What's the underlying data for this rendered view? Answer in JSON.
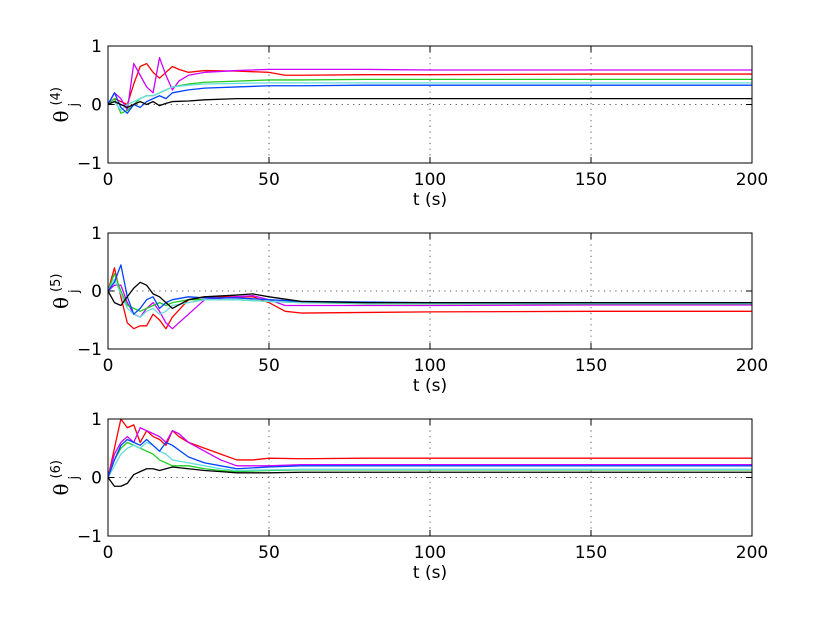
{
  "chart_data": [
    {
      "type": "line",
      "panel": "theta_j^(4)",
      "ylabel": {
        "symbol": "θ",
        "sub": "j",
        "sup": "(4)"
      },
      "xlabel": "t (s)",
      "xlim": [
        0,
        200
      ],
      "ylim": [
        -1,
        1
      ],
      "xticks": [
        0,
        50,
        100,
        150,
        200
      ],
      "yticks": [
        -1,
        0,
        1
      ],
      "grid": "dotted",
      "series": [
        {
          "name": "red",
          "color": "#ff0000",
          "x": [
            0,
            2,
            4,
            6,
            8,
            10,
            12,
            14,
            16,
            18,
            20,
            22,
            25,
            30,
            40,
            50,
            55,
            60,
            80,
            100,
            150,
            200
          ],
          "y": [
            0,
            0.1,
            0.05,
            0.0,
            0.35,
            0.65,
            0.7,
            0.55,
            0.45,
            0.55,
            0.65,
            0.6,
            0.55,
            0.58,
            0.57,
            0.55,
            0.5,
            0.5,
            0.51,
            0.51,
            0.52,
            0.52
          ]
        },
        {
          "name": "magenta",
          "color": "#cc00ff",
          "x": [
            0,
            2,
            4,
            6,
            8,
            10,
            12,
            14,
            16,
            18,
            20,
            22,
            25,
            30,
            40,
            50,
            60,
            80,
            100,
            150,
            200
          ],
          "y": [
            0,
            0.2,
            0.1,
            -0.1,
            0.7,
            0.5,
            0.3,
            0.2,
            0.8,
            0.5,
            0.25,
            0.4,
            0.5,
            0.55,
            0.58,
            0.6,
            0.6,
            0.6,
            0.59,
            0.59,
            0.59
          ]
        },
        {
          "name": "green",
          "color": "#22cc22",
          "x": [
            0,
            2,
            4,
            6,
            8,
            10,
            12,
            14,
            16,
            18,
            20,
            25,
            30,
            40,
            50,
            60,
            80,
            100,
            150,
            200
          ],
          "y": [
            0,
            0.1,
            -0.15,
            -0.1,
            0.0,
            0.1,
            0.15,
            0.15,
            0.2,
            0.25,
            0.3,
            0.35,
            0.38,
            0.4,
            0.42,
            0.42,
            0.43,
            0.43,
            0.43,
            0.43
          ]
        },
        {
          "name": "cyan",
          "color": "#66dddd",
          "x": [
            0,
            2,
            4,
            6,
            8,
            10,
            12,
            14,
            16,
            18,
            20,
            25,
            30,
            40,
            50,
            60,
            80,
            100,
            150,
            200
          ],
          "y": [
            0,
            0.05,
            -0.1,
            0.0,
            0.05,
            0.1,
            0.15,
            0.15,
            0.2,
            0.25,
            0.3,
            0.33,
            0.35,
            0.36,
            0.37,
            0.37,
            0.37,
            0.37,
            0.37,
            0.37
          ]
        },
        {
          "name": "blue",
          "color": "#0044ff",
          "x": [
            0,
            2,
            4,
            6,
            8,
            10,
            12,
            14,
            16,
            18,
            20,
            25,
            30,
            40,
            50,
            60,
            80,
            100,
            150,
            200
          ],
          "y": [
            0,
            0.2,
            -0.05,
            -0.15,
            0.0,
            -0.05,
            0.05,
            0.1,
            0.15,
            0.1,
            0.2,
            0.25,
            0.28,
            0.3,
            0.32,
            0.32,
            0.33,
            0.33,
            0.33,
            0.33
          ]
        },
        {
          "name": "black",
          "color": "#000000",
          "x": [
            0,
            2,
            4,
            6,
            8,
            10,
            12,
            14,
            16,
            18,
            20,
            25,
            30,
            40,
            50,
            60,
            80,
            100,
            150,
            200
          ],
          "y": [
            0,
            0.05,
            0.0,
            -0.05,
            0.0,
            0.05,
            0.0,
            0.05,
            -0.02,
            0.02,
            0.05,
            0.06,
            0.08,
            0.1,
            0.1,
            0.1,
            0.1,
            0.1,
            0.1,
            0.1
          ]
        }
      ]
    },
    {
      "type": "line",
      "panel": "theta_j^(5)",
      "ylabel": {
        "symbol": "θ",
        "sub": "j",
        "sup": "(5)"
      },
      "xlabel": "t (s)",
      "xlim": [
        0,
        200
      ],
      "ylim": [
        -1,
        1
      ],
      "xticks": [
        0,
        50,
        100,
        150,
        200
      ],
      "yticks": [
        -1,
        0,
        1
      ],
      "grid": "dotted",
      "series": [
        {
          "name": "red",
          "color": "#ff0000",
          "x": [
            0,
            2,
            4,
            6,
            8,
            10,
            12,
            14,
            16,
            18,
            20,
            25,
            30,
            40,
            45,
            50,
            55,
            60,
            80,
            100,
            150,
            200
          ],
          "y": [
            0,
            0.4,
            -0.1,
            -0.55,
            -0.65,
            -0.6,
            -0.6,
            -0.4,
            -0.5,
            -0.65,
            -0.45,
            -0.15,
            -0.1,
            -0.1,
            -0.1,
            -0.2,
            -0.35,
            -0.38,
            -0.37,
            -0.36,
            -0.35,
            -0.35
          ]
        },
        {
          "name": "magenta",
          "color": "#cc00ff",
          "x": [
            0,
            2,
            4,
            6,
            8,
            10,
            12,
            14,
            16,
            18,
            20,
            25,
            30,
            40,
            45,
            50,
            55,
            60,
            80,
            100,
            150,
            200
          ],
          "y": [
            0,
            0.1,
            0.1,
            -0.2,
            -0.4,
            -0.45,
            -0.3,
            -0.2,
            -0.35,
            -0.55,
            -0.65,
            -0.4,
            -0.15,
            -0.1,
            -0.08,
            -0.15,
            -0.25,
            -0.25,
            -0.25,
            -0.25,
            -0.24,
            -0.24
          ]
        },
        {
          "name": "green",
          "color": "#22cc22",
          "x": [
            0,
            2,
            4,
            6,
            8,
            10,
            12,
            14,
            16,
            18,
            20,
            25,
            30,
            40,
            50,
            60,
            80,
            100,
            150,
            200
          ],
          "y": [
            0,
            0.3,
            0.0,
            -0.25,
            -0.3,
            -0.35,
            -0.3,
            -0.25,
            -0.2,
            -0.25,
            -0.2,
            -0.15,
            -0.15,
            -0.15,
            -0.18,
            -0.2,
            -0.22,
            -0.22,
            -0.22,
            -0.22
          ]
        },
        {
          "name": "cyan",
          "color": "#66dddd",
          "x": [
            0,
            2,
            4,
            6,
            8,
            10,
            12,
            14,
            16,
            18,
            20,
            25,
            30,
            40,
            50,
            60,
            80,
            100,
            150,
            200
          ],
          "y": [
            0,
            0.2,
            -0.05,
            -0.3,
            -0.4,
            -0.45,
            -0.35,
            -0.3,
            -0.4,
            -0.35,
            -0.25,
            -0.2,
            -0.15,
            -0.15,
            -0.18,
            -0.2,
            -0.21,
            -0.21,
            -0.21,
            -0.21
          ]
        },
        {
          "name": "blue",
          "color": "#0044ff",
          "x": [
            0,
            2,
            4,
            6,
            8,
            10,
            12,
            14,
            16,
            18,
            20,
            25,
            30,
            40,
            50,
            60,
            80,
            100,
            150,
            200
          ],
          "y": [
            0,
            0.15,
            0.45,
            -0.1,
            -0.4,
            -0.3,
            -0.15,
            -0.1,
            -0.3,
            -0.2,
            -0.15,
            -0.1,
            -0.12,
            -0.12,
            -0.15,
            -0.18,
            -0.19,
            -0.2,
            -0.2,
            -0.2
          ]
        },
        {
          "name": "black",
          "color": "#000000",
          "x": [
            0,
            2,
            4,
            6,
            8,
            10,
            12,
            14,
            16,
            18,
            20,
            25,
            30,
            40,
            45,
            50,
            60,
            80,
            100,
            150,
            200
          ],
          "y": [
            0,
            -0.2,
            -0.25,
            -0.1,
            0.05,
            0.15,
            0.1,
            -0.05,
            -0.1,
            -0.2,
            -0.3,
            -0.15,
            -0.1,
            -0.07,
            -0.05,
            -0.1,
            -0.18,
            -0.2,
            -0.2,
            -0.2,
            -0.2
          ]
        }
      ]
    },
    {
      "type": "line",
      "panel": "theta_j^(6)",
      "ylabel": {
        "symbol": "θ",
        "sub": "j",
        "sup": "(6)"
      },
      "xlabel": "t (s)",
      "xlim": [
        0,
        200
      ],
      "ylim": [
        -1,
        1
      ],
      "xticks": [
        0,
        50,
        100,
        150,
        200
      ],
      "yticks": [
        -1,
        0,
        1
      ],
      "grid": "dotted",
      "series": [
        {
          "name": "red",
          "color": "#ff0000",
          "x": [
            0,
            2,
            4,
            6,
            8,
            10,
            12,
            14,
            16,
            18,
            20,
            22,
            25,
            30,
            35,
            40,
            45,
            50,
            60,
            80,
            100,
            150,
            200
          ],
          "y": [
            0,
            0.5,
            1.0,
            0.85,
            0.9,
            0.6,
            0.8,
            0.7,
            0.65,
            0.55,
            0.8,
            0.7,
            0.6,
            0.5,
            0.4,
            0.3,
            0.3,
            0.33,
            0.32,
            0.33,
            0.33,
            0.33,
            0.33
          ]
        },
        {
          "name": "magenta",
          "color": "#cc00ff",
          "x": [
            0,
            2,
            4,
            6,
            8,
            10,
            12,
            14,
            16,
            18,
            20,
            22,
            25,
            30,
            35,
            40,
            50,
            60,
            80,
            100,
            150,
            200
          ],
          "y": [
            0,
            0.4,
            0.6,
            0.7,
            0.6,
            0.85,
            0.8,
            0.75,
            0.7,
            0.6,
            0.8,
            0.75,
            0.6,
            0.45,
            0.3,
            0.2,
            0.2,
            0.22,
            0.22,
            0.22,
            0.22,
            0.22
          ]
        },
        {
          "name": "green",
          "color": "#22cc22",
          "x": [
            0,
            2,
            4,
            6,
            8,
            10,
            12,
            14,
            16,
            18,
            20,
            25,
            30,
            35,
            40,
            50,
            60,
            80,
            100,
            150,
            200
          ],
          "y": [
            0,
            0.3,
            0.5,
            0.6,
            0.55,
            0.5,
            0.45,
            0.4,
            0.3,
            0.25,
            0.2,
            0.2,
            0.15,
            0.12,
            0.1,
            0.12,
            0.13,
            0.13,
            0.13,
            0.13,
            0.13
          ]
        },
        {
          "name": "cyan",
          "color": "#66dddd",
          "x": [
            0,
            2,
            4,
            6,
            8,
            10,
            12,
            14,
            16,
            18,
            20,
            25,
            30,
            35,
            40,
            50,
            60,
            80,
            100,
            150,
            200
          ],
          "y": [
            0,
            0.2,
            0.4,
            0.5,
            0.55,
            0.5,
            0.6,
            0.55,
            0.45,
            0.4,
            0.3,
            0.25,
            0.2,
            0.15,
            0.12,
            0.13,
            0.14,
            0.14,
            0.14,
            0.14,
            0.14
          ]
        },
        {
          "name": "blue",
          "color": "#0044ff",
          "x": [
            0,
            2,
            4,
            6,
            8,
            10,
            12,
            14,
            16,
            18,
            20,
            25,
            30,
            35,
            40,
            50,
            60,
            80,
            100,
            150,
            200
          ],
          "y": [
            0,
            0.3,
            0.55,
            0.65,
            0.6,
            0.55,
            0.65,
            0.55,
            0.45,
            0.6,
            0.55,
            0.35,
            0.25,
            0.2,
            0.15,
            0.18,
            0.2,
            0.2,
            0.2,
            0.2,
            0.2
          ]
        },
        {
          "name": "black",
          "color": "#000000",
          "x": [
            0,
            2,
            4,
            6,
            8,
            10,
            12,
            14,
            16,
            18,
            20,
            25,
            30,
            35,
            40,
            50,
            60,
            80,
            100,
            150,
            200
          ],
          "y": [
            0,
            -0.15,
            -0.15,
            -0.1,
            0.05,
            0.1,
            0.15,
            0.15,
            0.12,
            0.15,
            0.18,
            0.15,
            0.12,
            0.1,
            0.08,
            0.08,
            0.09,
            0.09,
            0.09,
            0.09,
            0.09
          ]
        }
      ]
    }
  ]
}
